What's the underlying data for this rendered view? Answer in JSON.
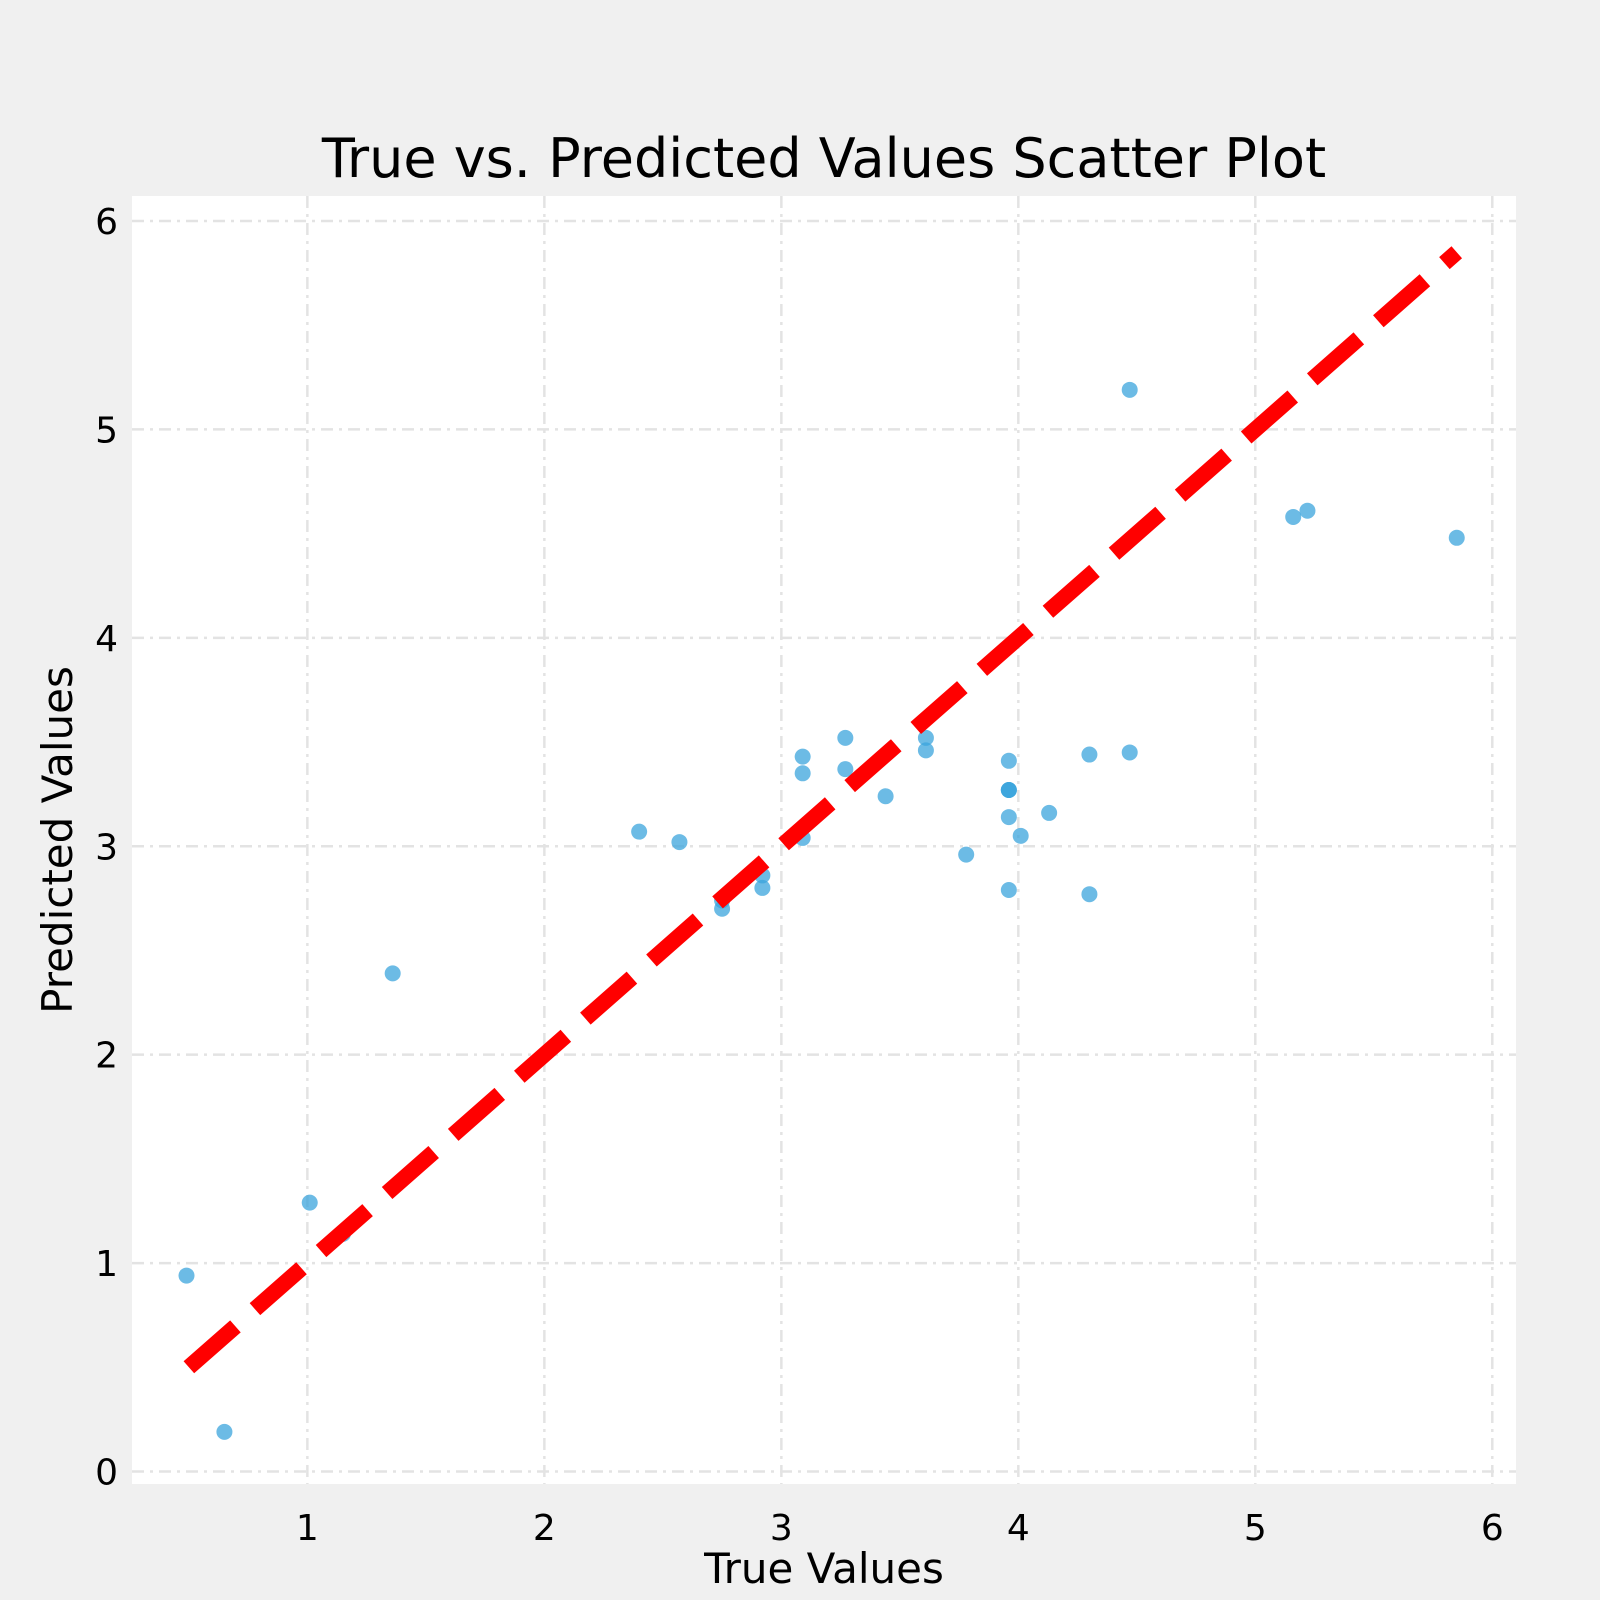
{
  "chart_data": {
    "type": "scatter",
    "title": "True vs. Predicted Values Scatter Plot",
    "xlabel": "True Values",
    "ylabel": "Predicted Values",
    "xlim": [
      0.26,
      6.1
    ],
    "ylim": [
      -0.06,
      6.12
    ],
    "xticks": [
      1,
      2,
      3,
      4,
      5,
      6
    ],
    "yticks": [
      0,
      1,
      2,
      3,
      4,
      5,
      6
    ],
    "grid": true,
    "reference_line": {
      "from": [
        0.5,
        0.5
      ],
      "to": [
        5.85,
        5.85
      ],
      "color": "#ff0000",
      "style": "dashed"
    },
    "colors": {
      "points": "#3ba4dc",
      "reference_line": "#ff0000",
      "plot_background": "#ffffff",
      "figure_background": "#f0f0f0",
      "grid": "#e3e3e3"
    },
    "series": [
      {
        "points": [
          [
            0.49,
            0.94
          ],
          [
            0.65,
            0.19
          ],
          [
            1.01,
            1.29
          ],
          [
            1.15,
            1.14
          ],
          [
            1.36,
            2.39
          ],
          [
            2.4,
            3.07
          ],
          [
            2.57,
            3.02
          ],
          [
            2.75,
            2.74
          ],
          [
            2.75,
            2.7
          ],
          [
            2.92,
            2.86
          ],
          [
            2.92,
            2.8
          ],
          [
            3.09,
            3.43
          ],
          [
            3.09,
            3.35
          ],
          [
            3.09,
            3.04
          ],
          [
            3.27,
            3.52
          ],
          [
            3.27,
            3.37
          ],
          [
            3.44,
            3.24
          ],
          [
            3.61,
            3.52
          ],
          [
            3.61,
            3.46
          ],
          [
            3.78,
            2.96
          ],
          [
            3.96,
            3.41
          ],
          [
            3.96,
            3.27
          ],
          [
            3.96,
            3.27
          ],
          [
            3.96,
            3.27
          ],
          [
            3.96,
            3.14
          ],
          [
            3.96,
            2.79
          ],
          [
            4.01,
            3.05
          ],
          [
            4.13,
            3.16
          ],
          [
            4.3,
            3.44
          ],
          [
            4.3,
            2.77
          ],
          [
            4.47,
            5.19
          ],
          [
            4.47,
            3.45
          ],
          [
            5.16,
            4.58
          ],
          [
            5.22,
            4.61
          ],
          [
            5.85,
            4.48
          ]
        ]
      }
    ]
  }
}
